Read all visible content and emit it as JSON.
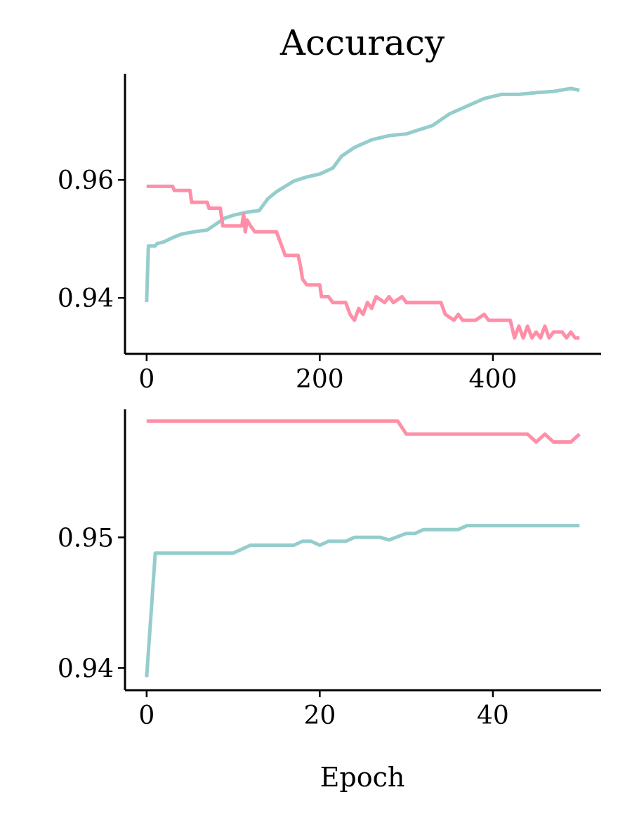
{
  "colors": {
    "train": "#94cdcc",
    "val": "#ff8fa8"
  },
  "chart_data": [
    {
      "type": "line",
      "title": "Accuracy",
      "xlabel": "",
      "ylabel": "",
      "xlim": [
        -25,
        525
      ],
      "ylim": [
        0.9305,
        0.978
      ],
      "xticks": [
        0,
        200,
        400
      ],
      "xtick_labels": [
        "0",
        "200",
        "400"
      ],
      "yticks": [
        0.94,
        0.96
      ],
      "ytick_labels": [
        "0.94",
        "0.96"
      ],
      "grid": false,
      "legend": "none",
      "series": [
        {
          "color_key": "train",
          "points": [
            [
              0,
              0.9393
            ],
            [
              2,
              0.9488
            ],
            [
              10,
              0.9488
            ],
            [
              12,
              0.9492
            ],
            [
              20,
              0.9495
            ],
            [
              30,
              0.9502
            ],
            [
              40,
              0.9508
            ],
            [
              55,
              0.9512
            ],
            [
              70,
              0.9515
            ],
            [
              80,
              0.9525
            ],
            [
              90,
              0.9535
            ],
            [
              100,
              0.954
            ],
            [
              115,
              0.9545
            ],
            [
              130,
              0.9548
            ],
            [
              140,
              0.9568
            ],
            [
              150,
              0.958
            ],
            [
              170,
              0.9598
            ],
            [
              185,
              0.9605
            ],
            [
              200,
              0.961
            ],
            [
              215,
              0.962
            ],
            [
              225,
              0.964
            ],
            [
              240,
              0.9655
            ],
            [
              260,
              0.9668
            ],
            [
              280,
              0.9675
            ],
            [
              300,
              0.9678
            ],
            [
              315,
              0.9685
            ],
            [
              330,
              0.9692
            ],
            [
              350,
              0.9712
            ],
            [
              370,
              0.9725
            ],
            [
              390,
              0.9738
            ],
            [
              410,
              0.9745
            ],
            [
              430,
              0.9745
            ],
            [
              450,
              0.9748
            ],
            [
              470,
              0.975
            ],
            [
              490,
              0.9755
            ],
            [
              500,
              0.9752
            ]
          ]
        },
        {
          "color_key": "val",
          "points": [
            [
              0,
              0.9589
            ],
            [
              30,
              0.9589
            ],
            [
              32,
              0.9582
            ],
            [
              50,
              0.9582
            ],
            [
              52,
              0.9562
            ],
            [
              70,
              0.9562
            ],
            [
              72,
              0.9552
            ],
            [
              85,
              0.9552
            ],
            [
              88,
              0.9522
            ],
            [
              110,
              0.9522
            ],
            [
              112,
              0.9542
            ],
            [
              114,
              0.9512
            ],
            [
              116,
              0.9532
            ],
            [
              120,
              0.9522
            ],
            [
              125,
              0.9512
            ],
            [
              150,
              0.9512
            ],
            [
              155,
              0.9492
            ],
            [
              160,
              0.9472
            ],
            [
              175,
              0.9472
            ],
            [
              178,
              0.9452
            ],
            [
              180,
              0.9432
            ],
            [
              185,
              0.9422
            ],
            [
              200,
              0.9422
            ],
            [
              202,
              0.9402
            ],
            [
              210,
              0.9402
            ],
            [
              215,
              0.9392
            ],
            [
              230,
              0.9392
            ],
            [
              235,
              0.9372
            ],
            [
              240,
              0.9362
            ],
            [
              245,
              0.9382
            ],
            [
              250,
              0.9372
            ],
            [
              255,
              0.9392
            ],
            [
              260,
              0.9382
            ],
            [
              265,
              0.9402
            ],
            [
              275,
              0.9392
            ],
            [
              280,
              0.9402
            ],
            [
              285,
              0.9392
            ],
            [
              295,
              0.9402
            ],
            [
              300,
              0.9392
            ],
            [
              340,
              0.9392
            ],
            [
              345,
              0.9372
            ],
            [
              355,
              0.9362
            ],
            [
              360,
              0.9372
            ],
            [
              365,
              0.9362
            ],
            [
              380,
              0.9362
            ],
            [
              390,
              0.9372
            ],
            [
              395,
              0.9362
            ],
            [
              420,
              0.9362
            ],
            [
              425,
              0.9332
            ],
            [
              430,
              0.9352
            ],
            [
              435,
              0.9332
            ],
            [
              440,
              0.9352
            ],
            [
              445,
              0.9332
            ],
            [
              450,
              0.9342
            ],
            [
              455,
              0.9332
            ],
            [
              460,
              0.9352
            ],
            [
              465,
              0.9332
            ],
            [
              470,
              0.9342
            ],
            [
              480,
              0.9342
            ],
            [
              485,
              0.9332
            ],
            [
              490,
              0.9342
            ],
            [
              495,
              0.9332
            ],
            [
              500,
              0.9332
            ]
          ]
        }
      ]
    },
    {
      "type": "line",
      "title": "",
      "xlabel": "Epoch",
      "ylabel": "",
      "xlim": [
        -2.5,
        52.5
      ],
      "ylim": [
        0.9383,
        0.9598
      ],
      "xticks": [
        0,
        20,
        40
      ],
      "xtick_labels": [
        "0",
        "20",
        "40"
      ],
      "yticks": [
        0.94,
        0.95
      ],
      "ytick_labels": [
        "0.94",
        "0.95"
      ],
      "grid": false,
      "legend": "none",
      "series": [
        {
          "color_key": "train",
          "points": [
            [
              0,
              0.9393
            ],
            [
              1,
              0.9488
            ],
            [
              10,
              0.9488
            ],
            [
              12,
              0.9494
            ],
            [
              17,
              0.9494
            ],
            [
              18,
              0.9497
            ],
            [
              19,
              0.9497
            ],
            [
              20,
              0.9494
            ],
            [
              21,
              0.9497
            ],
            [
              23,
              0.9497
            ],
            [
              24,
              0.95
            ],
            [
              27,
              0.95
            ],
            [
              28,
              0.9498
            ],
            [
              30,
              0.9503
            ],
            [
              31,
              0.9503
            ],
            [
              32,
              0.9506
            ],
            [
              36,
              0.9506
            ],
            [
              37,
              0.9509
            ],
            [
              50,
              0.9509
            ]
          ]
        },
        {
          "color_key": "val",
          "points": [
            [
              0,
              0.9589
            ],
            [
              29,
              0.9589
            ],
            [
              30,
              0.9579
            ],
            [
              44,
              0.9579
            ],
            [
              45,
              0.9573
            ],
            [
              46,
              0.9579
            ],
            [
              47,
              0.9573
            ],
            [
              49,
              0.9573
            ],
            [
              50,
              0.9579
            ]
          ]
        }
      ]
    }
  ]
}
